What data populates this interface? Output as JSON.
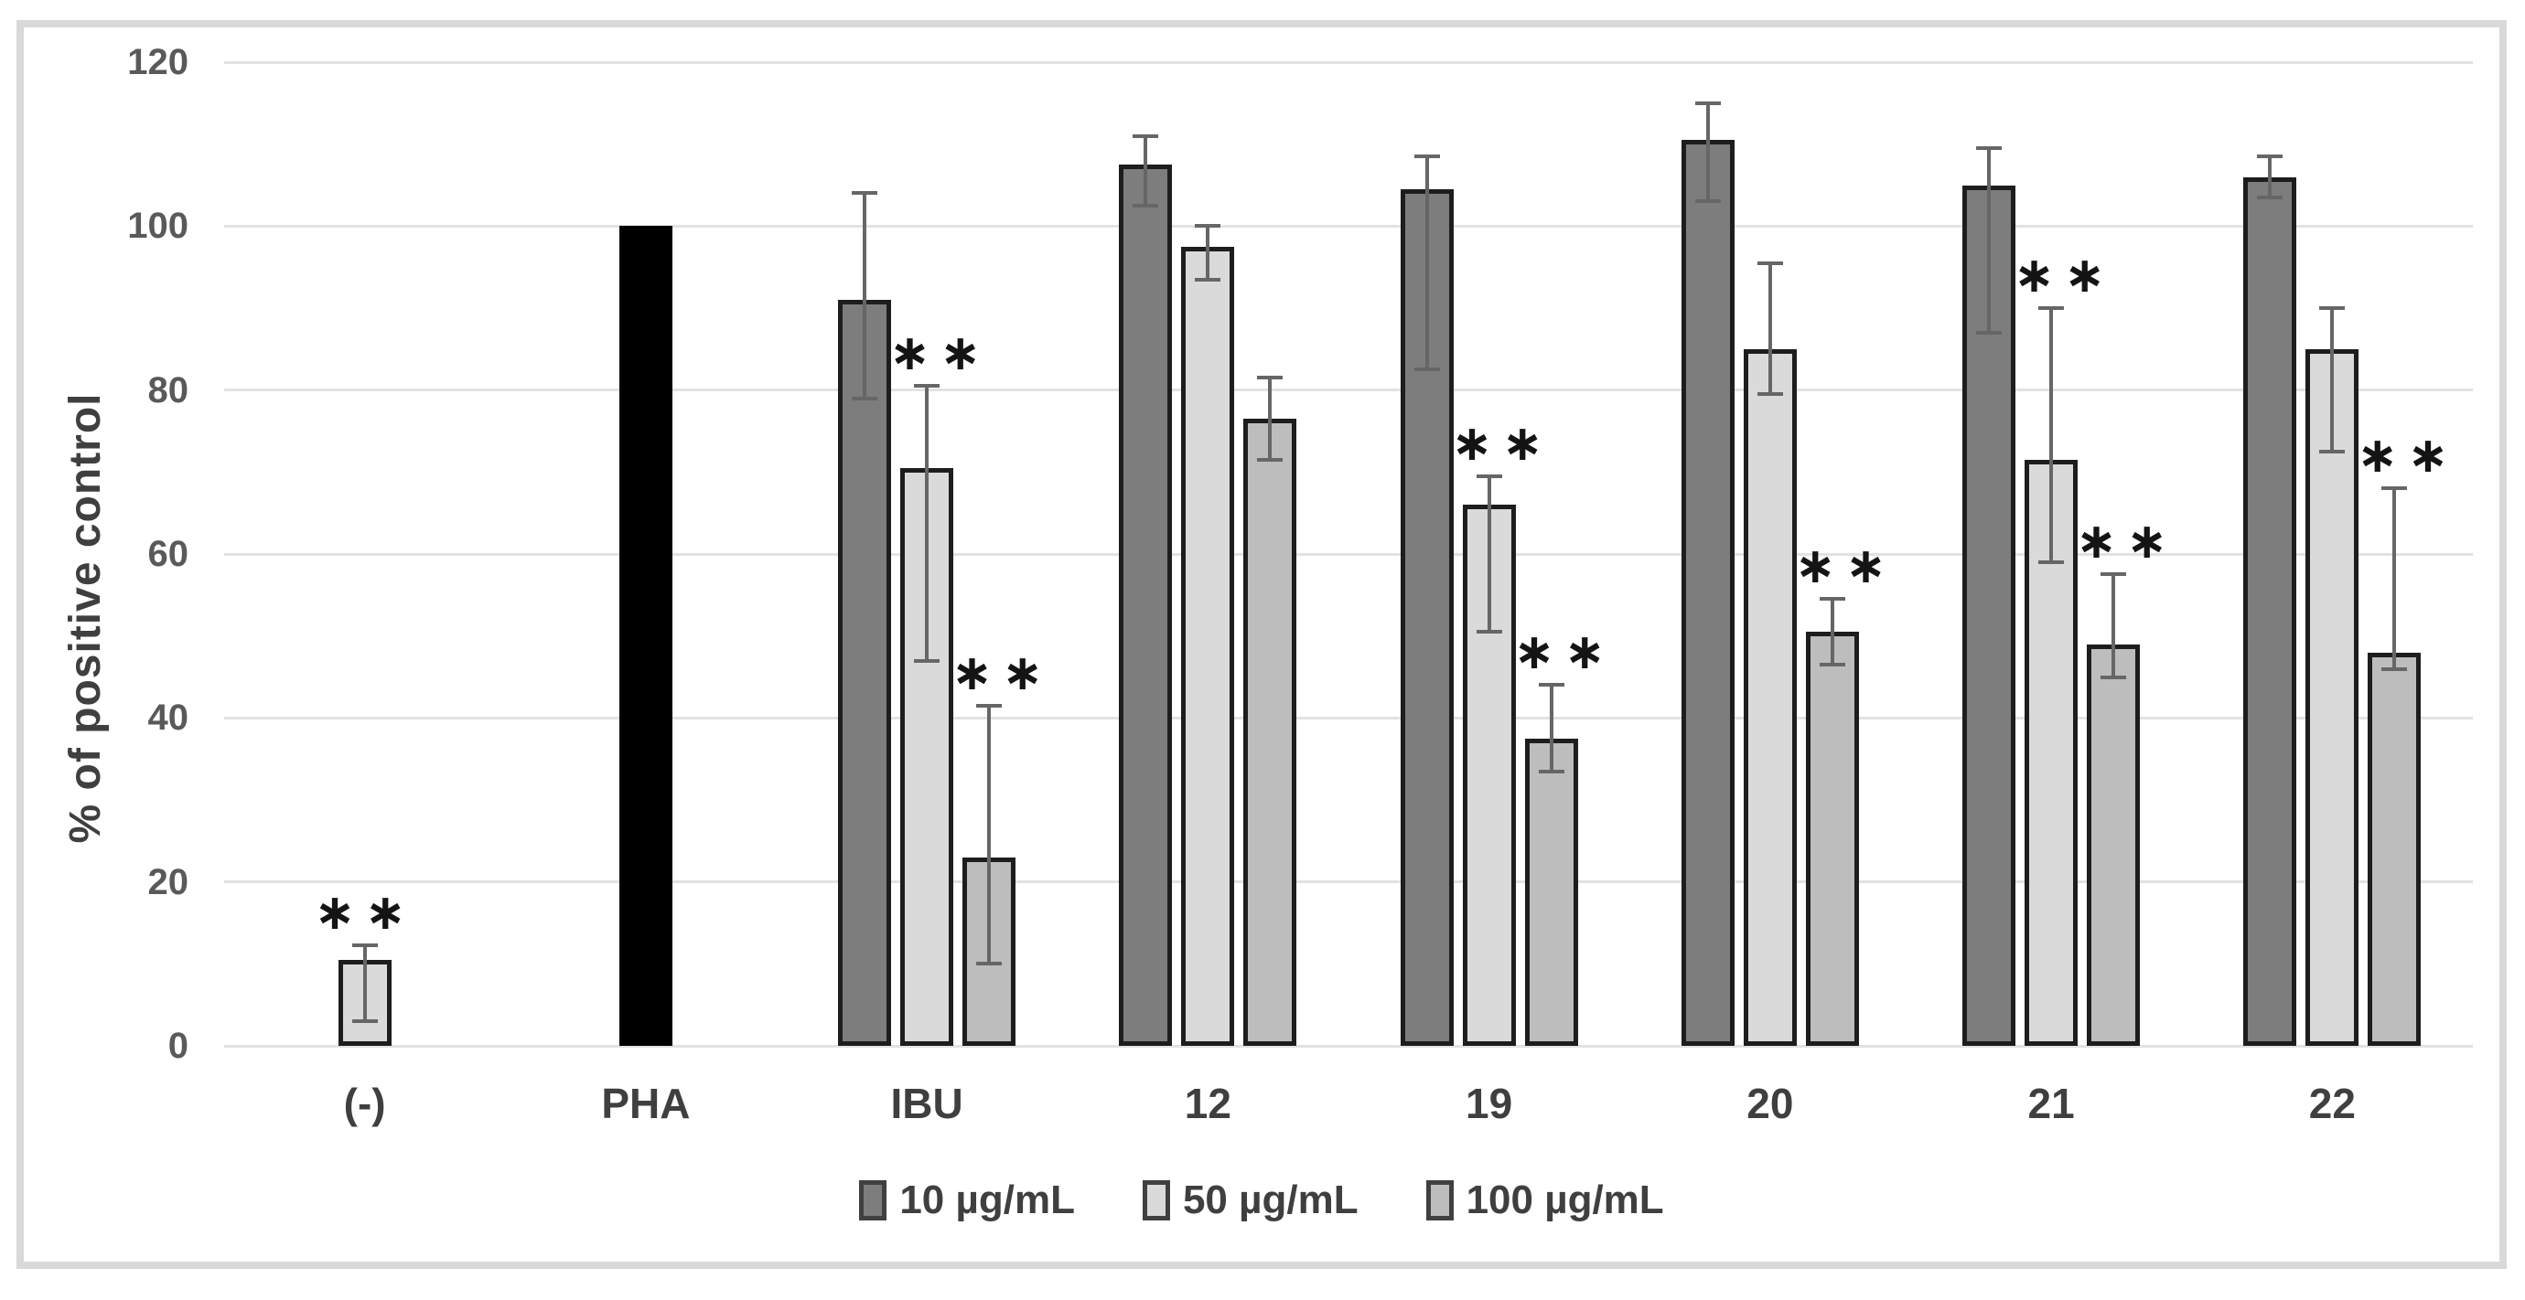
{
  "chart_data": {
    "type": "bar",
    "title": "",
    "ylabel": "% of positive control",
    "ylim": [
      0,
      120
    ],
    "yticks": [
      0,
      20,
      40,
      60,
      80,
      100,
      120
    ],
    "grid": true,
    "legend_position": "bottom",
    "significance_marker": "**",
    "categories": [
      "(-)",
      "PHA",
      "IBU",
      "12",
      "19",
      "20",
      "21",
      "22"
    ],
    "series": [
      {
        "key": "10",
        "label": "10 µg/mL",
        "color": "#7d7d7d"
      },
      {
        "key": "50",
        "label": "50 µg/mL",
        "color": "#dadada"
      },
      {
        "key": "100",
        "label": "100 µg/mL",
        "color": "#bdbdbd"
      }
    ],
    "control_series": {
      "key": "PHA",
      "color": "#000000"
    },
    "groups": [
      {
        "label": "(-)",
        "bars": [
          {
            "series": "50",
            "value": 10.5,
            "err_low": 3,
            "err_high": 12.3,
            "sig": true
          }
        ]
      },
      {
        "label": "PHA",
        "bars": [
          {
            "series": "PHA",
            "value": 100
          }
        ]
      },
      {
        "label": "IBU",
        "bars": [
          {
            "series": "10",
            "value": 91,
            "err_low": 79,
            "err_high": 104
          },
          {
            "series": "50",
            "value": 70.5,
            "err_low": 47,
            "err_high": 80.5,
            "sig": true
          },
          {
            "series": "100",
            "value": 23,
            "err_low": 10,
            "err_high": 41.5,
            "sig": true
          }
        ]
      },
      {
        "label": "12",
        "bars": [
          {
            "series": "10",
            "value": 107.5,
            "err_low": 102.5,
            "err_high": 111
          },
          {
            "series": "50",
            "value": 97.5,
            "err_low": 93.5,
            "err_high": 100
          },
          {
            "series": "100",
            "value": 76.5,
            "err_low": 71.5,
            "err_high": 81.5
          }
        ]
      },
      {
        "label": "19",
        "bars": [
          {
            "series": "10",
            "value": 104.5,
            "err_low": 82.5,
            "err_high": 108.5
          },
          {
            "series": "50",
            "value": 66,
            "err_low": 50.5,
            "err_high": 69.5,
            "sig": true
          },
          {
            "series": "100",
            "value": 37.5,
            "err_low": 33.5,
            "err_high": 44,
            "sig": true
          }
        ]
      },
      {
        "label": "20",
        "bars": [
          {
            "series": "10",
            "value": 110.5,
            "err_low": 103,
            "err_high": 115
          },
          {
            "series": "50",
            "value": 85,
            "err_low": 79.5,
            "err_high": 95.5
          },
          {
            "series": "100",
            "value": 50.5,
            "err_low": 46.5,
            "err_high": 54.5,
            "sig": true
          }
        ]
      },
      {
        "label": "21",
        "bars": [
          {
            "series": "10",
            "value": 105,
            "err_low": 87,
            "err_high": 109.5
          },
          {
            "series": "50",
            "value": 71.5,
            "err_low": 59,
            "err_high": 90,
            "sig": true
          },
          {
            "series": "100",
            "value": 49,
            "err_low": 45,
            "err_high": 57.5,
            "sig": true
          }
        ]
      },
      {
        "label": "22",
        "bars": [
          {
            "series": "10",
            "value": 106,
            "err_low": 103.5,
            "err_high": 108.5
          },
          {
            "series": "50",
            "value": 85,
            "err_low": 72.5,
            "err_high": 90
          },
          {
            "series": "100",
            "value": 48,
            "err_low": 46,
            "err_high": 68,
            "sig": true
          }
        ]
      }
    ],
    "colors": {
      "frame_border": "#d9d9d9",
      "gridline": "#e2e2e2",
      "bar_outline": "#1d1d1d",
      "error_bar": "#666666",
      "tick_text": "#595959",
      "label_text": "#3f3f3f",
      "sig_text": "#141414",
      "background": "#ffffff"
    }
  },
  "legend": {
    "items": [
      {
        "label": "10 µg/mL",
        "series": "10"
      },
      {
        "label": "50 µg/mL",
        "series": "50"
      },
      {
        "label": "100 µg/mL",
        "series": "100"
      }
    ]
  }
}
